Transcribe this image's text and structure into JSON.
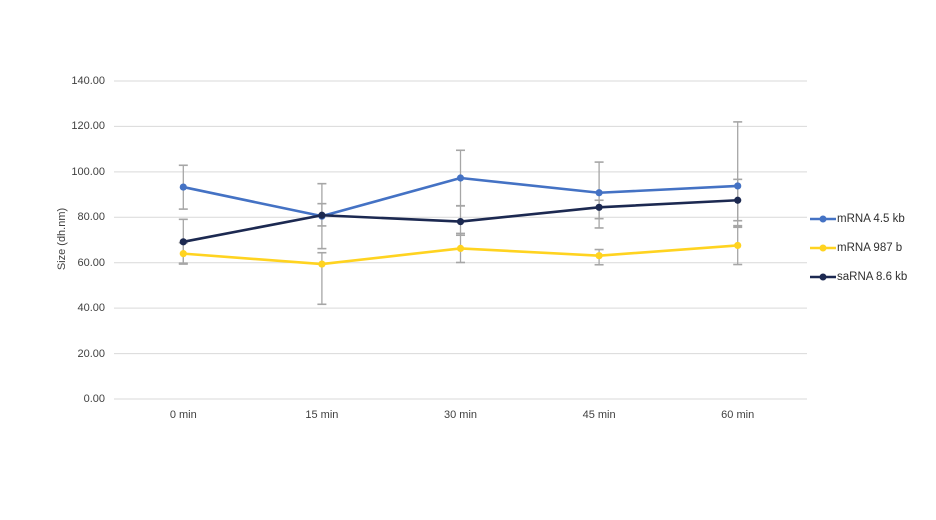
{
  "figure": {
    "background": "#FFFFFF"
  },
  "chart_data": {
    "type": "line",
    "title": "",
    "xlabel": "",
    "ylabel": "Size (dh.nm)",
    "categories": [
      "0 min",
      "15 min",
      "30 min",
      "45 min",
      "60 min"
    ],
    "ylim": [
      0,
      140
    ],
    "ytick_step": 20,
    "ytick_labels": [
      "0.00",
      "20.00",
      "40.00",
      "60.00",
      "80.00",
      "100.00",
      "120.00",
      "140.00"
    ],
    "grid": true,
    "error_bars": true,
    "legend_position": "right",
    "series": [
      {
        "name": "mRNA 4.5 kb",
        "color": "#4472C4",
        "marker": "circle",
        "values": [
          93.3,
          80.5,
          97.3,
          90.8,
          93.8
        ],
        "err_up": [
          9.6,
          14.3,
          12.2,
          13.5,
          28.2
        ],
        "err_down": [
          9.7,
          14.3,
          12.2,
          11.4,
          17.5
        ]
      },
      {
        "name": "mRNA 987 b",
        "color": "#FFD320",
        "marker": "circle",
        "values": [
          64.0,
          59.4,
          66.3,
          63.1,
          67.6
        ],
        "err_up": [
          4.8,
          5.0,
          6.6,
          2.7,
          8.0
        ],
        "err_down": [
          4.6,
          17.7,
          6.2,
          4.0,
          8.4
        ]
      },
      {
        "name": "saRNA 8.6 kb",
        "color": "#1C2951",
        "marker": "circle",
        "values": [
          69.2,
          80.9,
          78.1,
          84.4,
          87.5
        ],
        "err_up": [
          9.9,
          5.1,
          6.9,
          3.1,
          9.2
        ],
        "err_down": [
          9.4,
          4.7,
          6.0,
          9.1,
          9.0
        ]
      }
    ],
    "colors": {
      "gridline": "#D9D9D9",
      "error_bar": "#A6A6A6",
      "tick_text": "#404040"
    }
  }
}
